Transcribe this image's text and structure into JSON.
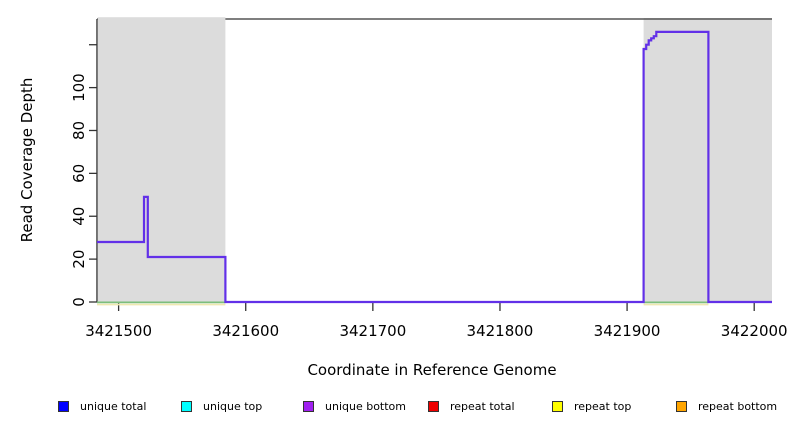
{
  "chart_data": {
    "type": "line",
    "title": "",
    "xlabel": "Coordinate in Reference Genome",
    "ylabel": "Read Coverage Depth",
    "xlim": [
      3421483,
      3422014
    ],
    "ylim": [
      0,
      132
    ],
    "x_ticks": [
      3421500,
      3421600,
      3421700,
      3421800,
      3421900,
      3422000
    ],
    "y_ticks": [
      0,
      20,
      40,
      60,
      80,
      100,
      120
    ],
    "y_tick_labels": [
      "0",
      "20",
      "40",
      "60",
      "80",
      "100",
      ""
    ],
    "grid": false,
    "background_color": "#ffffff",
    "shaded_region_color": "#dcdcdc",
    "shaded_regions": [
      {
        "x0": 3421483,
        "x1": 3421584
      },
      {
        "x0": 3421913,
        "x1": 3422014
      }
    ],
    "series": [
      {
        "name": "unique bottom coverage",
        "color": "#6230e8",
        "style": "step-line",
        "points": [
          [
            3421483,
            28
          ],
          [
            3421520,
            28
          ],
          [
            3421520,
            49
          ],
          [
            3421523,
            49
          ],
          [
            3421523,
            21
          ],
          [
            3421584,
            21
          ],
          [
            3421584,
            0
          ],
          [
            3421913,
            0
          ],
          [
            3421913,
            118
          ],
          [
            3421915,
            118
          ],
          [
            3421915,
            120
          ],
          [
            3421917,
            120
          ],
          [
            3421917,
            122
          ],
          [
            3421919,
            122
          ],
          [
            3421919,
            123
          ],
          [
            3421921,
            123
          ],
          [
            3421921,
            124
          ],
          [
            3421923,
            124
          ],
          [
            3421923,
            126
          ],
          [
            3421964,
            126
          ],
          [
            3421964,
            0
          ],
          [
            3422014,
            0
          ]
        ]
      },
      {
        "name": "zero-depth overlap line",
        "color": "#7cbe7c",
        "style": "baseline",
        "segments": [
          [
            3421483,
            3421584
          ],
          [
            3421913,
            3421964
          ]
        ]
      },
      {
        "name": "zero-depth repeat line",
        "color": "#efe9b0",
        "style": "baseline-under",
        "segments": [
          [
            3421483,
            3421584
          ],
          [
            3421913,
            3421964
          ]
        ]
      }
    ],
    "legend_position": "bottom",
    "legend": [
      {
        "label": "unique total",
        "color": "#0000ff"
      },
      {
        "label": "unique top",
        "color": "#00ffff"
      },
      {
        "label": "unique bottom",
        "color": "#a020f0"
      },
      {
        "label": "repeat total",
        "color": "#ee0000"
      },
      {
        "label": "repeat top",
        "color": "#ffff00"
      },
      {
        "label": "repeat bottom",
        "color": "#ffa500"
      }
    ]
  }
}
